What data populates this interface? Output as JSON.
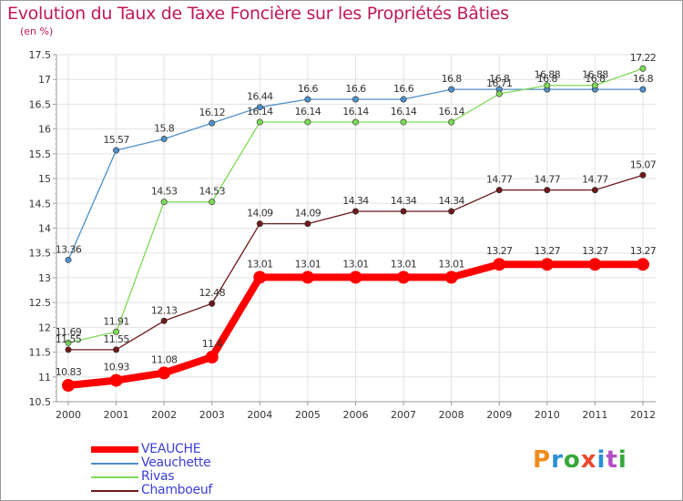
{
  "title": "Evolution du Taux de Taxe Foncière sur les Propriétés Bâties",
  "unit": "(en %)",
  "brand": {
    "text": "Proxiti",
    "colors": [
      "#f08c1c",
      "#2a8fd6",
      "#35a83a",
      "#e8492e",
      "#2a8fd6",
      "#b34fc4",
      "#35a83a"
    ]
  },
  "chart_data": {
    "type": "line",
    "title": "Evolution du Taux de Taxe Foncière sur les Propriétés Bâties",
    "ylabel": "(en %)",
    "xlabel": "",
    "categories": [
      "2000",
      "2001",
      "2002",
      "2003",
      "2004",
      "2005",
      "2006",
      "2007",
      "2008",
      "2009",
      "2010",
      "2011",
      "2012"
    ],
    "ylim": [
      10.5,
      17.5
    ],
    "yticks": [
      "10.5",
      "11",
      "11.5",
      "12",
      "12.5",
      "13",
      "13.5",
      "14",
      "14.5",
      "15",
      "15.5",
      "16",
      "16.5",
      "17",
      "17.5"
    ],
    "series": [
      {
        "name": "VEAUCHE",
        "color": "#ff0000",
        "values": [
          10.83,
          10.93,
          11.08,
          11.4,
          13.01,
          13.01,
          13.01,
          13.01,
          13.01,
          13.27,
          13.27,
          13.27,
          13.27
        ],
        "labels": [
          "10.83",
          "10.93",
          "11.08",
          "11.4",
          "13.01",
          "13.01",
          "13.01",
          "13.01",
          "13.01",
          "13.27",
          "13.27",
          "13.27",
          "13.27"
        ]
      },
      {
        "name": "Veauchette",
        "color": "#4f8fc9",
        "values": [
          13.36,
          15.57,
          15.8,
          16.12,
          16.44,
          16.6,
          16.6,
          16.6,
          16.8,
          16.8,
          16.8,
          16.8,
          16.8
        ],
        "labels": [
          "13.36",
          "15.57",
          "15.8",
          "16.12",
          "16.44",
          "16.6",
          "16.6",
          "16.6",
          "16.8",
          "16.8",
          "16.8",
          "16.8",
          "16.8"
        ]
      },
      {
        "name": "Rivas",
        "color": "#7ed957",
        "values": [
          11.69,
          11.91,
          14.53,
          14.53,
          16.14,
          16.14,
          16.14,
          16.14,
          16.14,
          16.71,
          16.88,
          16.88,
          17.22
        ],
        "labels": [
          "11.69",
          "11.91",
          "14.53",
          "14.53",
          "16.14",
          "16.14",
          "16.14",
          "16.14",
          "16.14",
          "16.71",
          "16.88",
          "16.88",
          "17.22"
        ]
      },
      {
        "name": "Chamboeuf",
        "color": "#6e1a1a",
        "values": [
          11.55,
          11.55,
          12.13,
          12.48,
          14.09,
          14.09,
          14.34,
          14.34,
          14.34,
          14.77,
          14.77,
          14.77,
          15.07
        ],
        "labels": [
          "11.55",
          "11.55",
          "12.13",
          "12.48",
          "14.09",
          "14.09",
          "14.34",
          "14.34",
          "14.34",
          "14.77",
          "14.77",
          "14.77",
          "15.07"
        ]
      }
    ],
    "legend": "bottom-left",
    "grid": true
  }
}
